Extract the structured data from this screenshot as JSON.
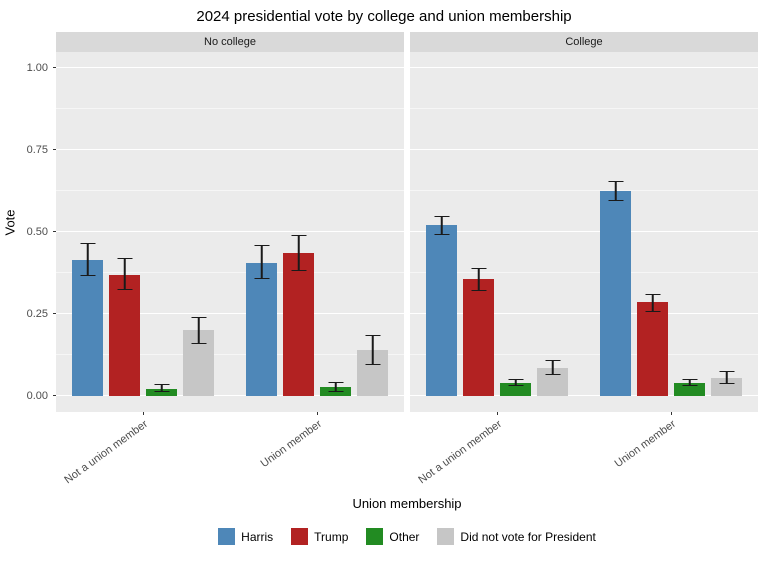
{
  "chart_data": {
    "type": "bar",
    "title": "2024 presidential vote by college and union membership",
    "xlabel": "Union membership",
    "ylabel": "Vote",
    "ylim": [
      0,
      1
    ],
    "yticks": [
      {
        "value": 0.0,
        "label": "0.00"
      },
      {
        "value": 0.25,
        "label": "0.25"
      },
      {
        "value": 0.5,
        "label": "0.50"
      },
      {
        "value": 0.75,
        "label": "0.75"
      },
      {
        "value": 1.0,
        "label": "1.00"
      }
    ],
    "legend": [
      {
        "label": "Harris",
        "color": "#4E87B8"
      },
      {
        "label": "Trump",
        "color": "#B22222"
      },
      {
        "label": "Other",
        "color": "#228B22"
      },
      {
        "label": "Did not vote for President",
        "color": "#C6C6C6"
      }
    ],
    "facets": [
      {
        "label": "No college",
        "groups": [
          {
            "category": "Not a union member",
            "bars": [
              {
                "series": "Harris",
                "value": 0.415,
                "lo": 0.365,
                "hi": 0.465
              },
              {
                "series": "Trump",
                "value": 0.37,
                "lo": 0.322,
                "hi": 0.42
              },
              {
                "series": "Other",
                "value": 0.02,
                "lo": 0.01,
                "hi": 0.035
              },
              {
                "series": "Did not vote for President",
                "value": 0.2,
                "lo": 0.157,
                "hi": 0.24
              }
            ]
          },
          {
            "category": "Union member",
            "bars": [
              {
                "series": "Harris",
                "value": 0.405,
                "lo": 0.355,
                "hi": 0.46
              },
              {
                "series": "Trump",
                "value": 0.435,
                "lo": 0.38,
                "hi": 0.49
              },
              {
                "series": "Other",
                "value": 0.025,
                "lo": 0.012,
                "hi": 0.042
              },
              {
                "series": "Did not vote for President",
                "value": 0.14,
                "lo": 0.095,
                "hi": 0.185
              }
            ]
          }
        ]
      },
      {
        "label": "College",
        "groups": [
          {
            "category": "Not a union member",
            "bars": [
              {
                "series": "Harris",
                "value": 0.52,
                "lo": 0.49,
                "hi": 0.55
              },
              {
                "series": "Trump",
                "value": 0.355,
                "lo": 0.32,
                "hi": 0.39
              },
              {
                "series": "Other",
                "value": 0.04,
                "lo": 0.028,
                "hi": 0.052
              },
              {
                "series": "Did not vote for President",
                "value": 0.085,
                "lo": 0.062,
                "hi": 0.108
              }
            ]
          },
          {
            "category": "Union member",
            "bars": [
              {
                "series": "Harris",
                "value": 0.625,
                "lo": 0.595,
                "hi": 0.655
              },
              {
                "series": "Trump",
                "value": 0.285,
                "lo": 0.255,
                "hi": 0.31
              },
              {
                "series": "Other",
                "value": 0.04,
                "lo": 0.028,
                "hi": 0.052
              },
              {
                "series": "Did not vote for President",
                "value": 0.055,
                "lo": 0.035,
                "hi": 0.075
              }
            ]
          }
        ]
      }
    ],
    "colors": {
      "panel_bg": "#EBEBEB",
      "strip_bg": "#D9D9D9",
      "grid": "#FFFFFF",
      "errorbar": "#1A1A1A"
    },
    "layout": {
      "legend_position": "bottom",
      "grid": "on",
      "x_label_angle": 36
    }
  }
}
